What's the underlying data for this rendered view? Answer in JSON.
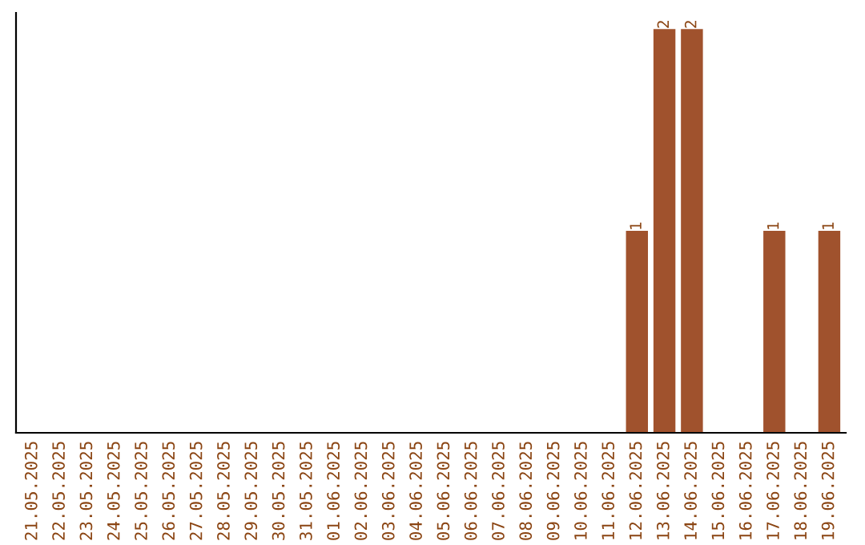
{
  "chart_data": {
    "type": "bar",
    "categories": [
      "21.05.2025",
      "22.05.2025",
      "23.05.2025",
      "24.05.2025",
      "25.05.2025",
      "26.05.2025",
      "27.05.2025",
      "28.05.2025",
      "29.05.2025",
      "30.05.2025",
      "31.05.2025",
      "01.06.2025",
      "02.06.2025",
      "03.06.2025",
      "04.06.2025",
      "05.06.2025",
      "06.06.2025",
      "07.06.2025",
      "08.06.2025",
      "09.06.2025",
      "10.06.2025",
      "11.06.2025",
      "12.06.2025",
      "13.06.2025",
      "14.06.2025",
      "15.06.2025",
      "16.06.2025",
      "17.06.2025",
      "18.06.2025",
      "19.06.2025"
    ],
    "values": [
      null,
      null,
      null,
      null,
      null,
      null,
      null,
      null,
      null,
      null,
      null,
      null,
      null,
      null,
      null,
      null,
      null,
      null,
      null,
      null,
      null,
      null,
      1,
      2,
      2,
      null,
      null,
      1,
      null,
      1
    ],
    "data_labels": true,
    "color": "#a0522d",
    "grid": false,
    "tick_labels": "x"
  }
}
